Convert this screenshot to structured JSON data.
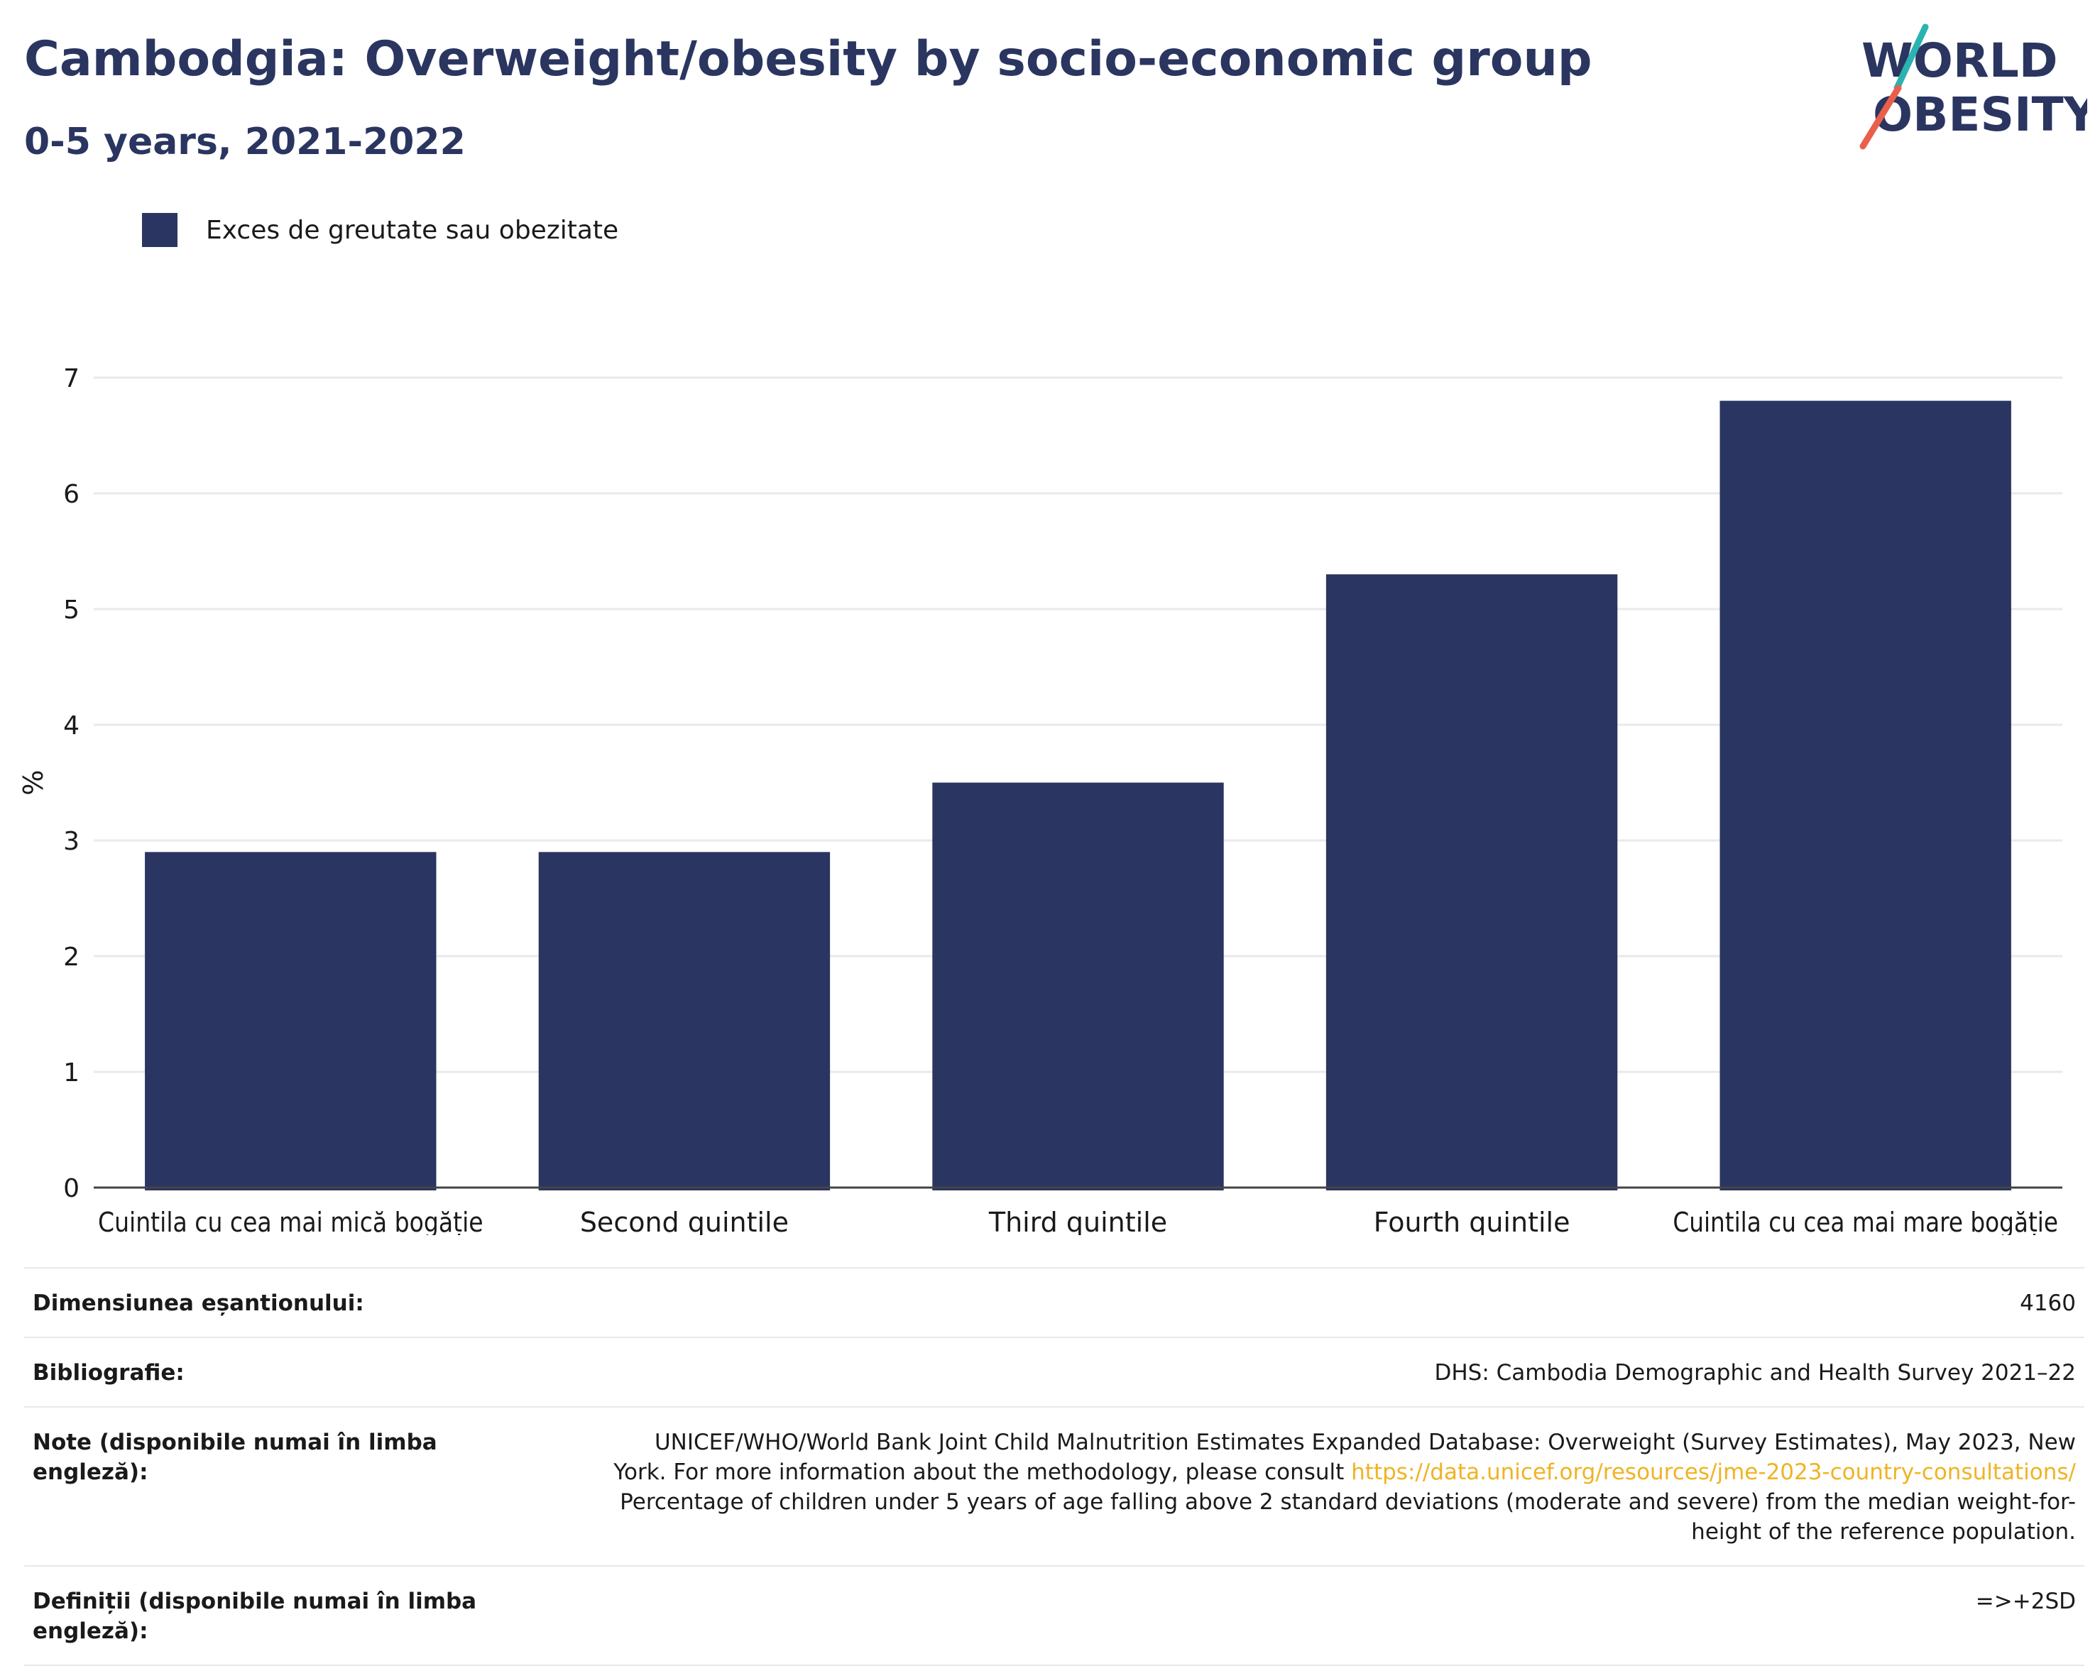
{
  "header": {
    "title": "Cambodgia: Overweight/obesity by socio-economic group",
    "subtitle": "0-5 years, 2021-2022"
  },
  "logo": {
    "line1": "WORLD",
    "line2": "OBESITY",
    "accent_teal": "#2bb3b1",
    "accent_red": "#e8604c"
  },
  "legend": {
    "label": "Exces de greutate sau obezitate"
  },
  "chart_data": {
    "type": "bar",
    "categories": [
      "Cuintila cu cea mai mică bogăție",
      "Second quintile",
      "Third quintile",
      "Fourth quintile",
      "Cuintila cu cea mai mare bogăție"
    ],
    "series": [
      {
        "name": "Exces de greutate sau obezitate",
        "values": [
          2.9,
          2.9,
          3.5,
          5.3,
          6.8
        ]
      }
    ],
    "ylabel": "%",
    "ylim": [
      0,
      7
    ],
    "yticks": [
      0,
      1,
      2,
      3,
      4,
      5,
      6,
      7
    ],
    "grid": true,
    "legend_position": "top-left",
    "bar_color": "#2a3661"
  },
  "info": {
    "sample_size": {
      "label": "Dimensiunea eșantionului:",
      "value": "4160"
    },
    "bibliography": {
      "label": "Bibliografie:",
      "value": "DHS: Cambodia Demographic and Health Survey 2021–22"
    },
    "notes": {
      "label": "Note (disponibile numai în limba engleză):",
      "text_before": "UNICEF/WHO/World Bank Joint Child Malnutrition Estimates Expanded Database: Overweight (Survey Estimates), May 2023, New York. For more information about the methodology, please consult ",
      "link": "https://data.unicef.org/resources/jme-2023-country-consultations/",
      "text_after": " Percentage of children under 5 years of age falling above 2 standard deviations (moderate and severe) from the median weight-for-height of the reference population."
    },
    "definitions": {
      "label": "Definiții (disponibile numai în limba engleză):",
      "value": "=>+2SD"
    }
  }
}
